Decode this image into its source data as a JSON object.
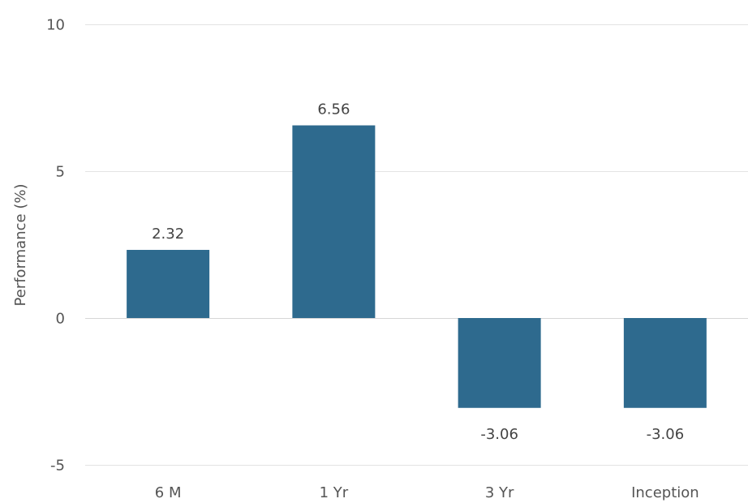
{
  "chart_data": {
    "type": "bar",
    "categories": [
      "6 M",
      "1 Yr",
      "3 Yr",
      "Inception"
    ],
    "values": [
      2.32,
      6.56,
      -3.06,
      -3.06
    ],
    "data_labels": [
      "2.32",
      "6.56",
      "-3.06",
      "-3.06"
    ],
    "title": "",
    "xlabel": "",
    "ylabel": "Performance (%)",
    "ylim": [
      -5,
      10
    ],
    "yticks": [
      -5,
      0,
      5,
      10
    ],
    "ytick_labels": [
      "-5",
      "0",
      "5",
      "10"
    ],
    "grid": "horizontal",
    "legend": "none",
    "bar_color": "#2e6a8e"
  }
}
